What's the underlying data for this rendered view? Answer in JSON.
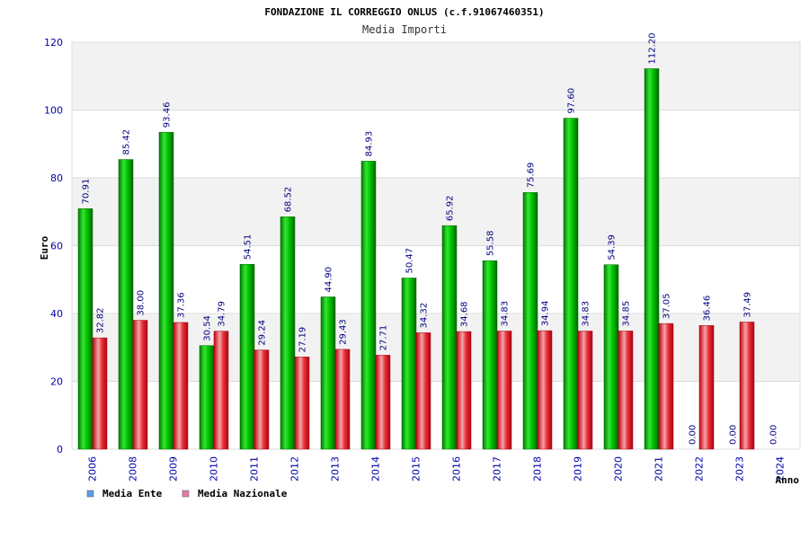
{
  "header": {
    "title": "FONDAZIONE IL CORREGGIO ONLUS (c.f.91067460351)",
    "subtitle": "Media Importi"
  },
  "chart_data": {
    "type": "bar",
    "title": "FONDAZIONE IL CORREGGIO ONLUS (c.f.91067460351)",
    "subtitle": "Media Importi",
    "xlabel": "Anno",
    "ylabel": "Euro",
    "ylim": [
      0,
      120
    ],
    "yticks": [
      0,
      20,
      40,
      60,
      80,
      100,
      120
    ],
    "grid": "horizontal bands",
    "legend_position": "bottom-left",
    "categories": [
      "2006",
      "2008",
      "2009",
      "2010",
      "2011",
      "2012",
      "2013",
      "2014",
      "2015",
      "2016",
      "2017",
      "2018",
      "2019",
      "2020",
      "2021",
      "2022",
      "2023",
      "2024"
    ],
    "series": [
      {
        "name": "Media Ente",
        "legend_color": "#5b9be6",
        "bar_color": "#00b800",
        "values": [
          70.91,
          85.42,
          93.46,
          30.54,
          54.51,
          68.52,
          44.9,
          84.93,
          50.47,
          65.92,
          55.58,
          75.69,
          97.6,
          54.39,
          112.2,
          0.0,
          0.0,
          0.0
        ],
        "labels": [
          "70.91",
          "85.42",
          "93.46",
          "30.54",
          "54.51",
          "68.52",
          "44.90",
          "84.93",
          "50.47",
          "65.92",
          "55.58",
          "75.69",
          "97.60",
          "54.39",
          "112.20",
          "0.00",
          "0.00",
          "0.00"
        ]
      },
      {
        "name": "Media Nazionale",
        "legend_color": "#e37ba6",
        "bar_color": "#e8202c",
        "values": [
          32.82,
          38.0,
          37.36,
          34.79,
          29.24,
          27.19,
          29.43,
          27.71,
          34.32,
          34.68,
          34.83,
          34.94,
          34.83,
          34.85,
          37.05,
          36.46,
          37.49,
          null
        ],
        "labels": [
          "32.82",
          "38.00",
          "37.36",
          "34.79",
          "29.24",
          "27.19",
          "29.43",
          "27.71",
          "34.32",
          "34.68",
          "34.83",
          "34.94",
          "34.83",
          "34.85",
          "37.05",
          "36.46",
          "37.49",
          ""
        ]
      }
    ],
    "colors": {
      "axis_text": "#0000aa",
      "value_label": "#000080",
      "band_light": "#f2f2f2",
      "grid_line": "#dcdcdc",
      "axis_line": "#aaaaaa",
      "title_text": "#000000",
      "subtitle_text": "#333333"
    }
  }
}
